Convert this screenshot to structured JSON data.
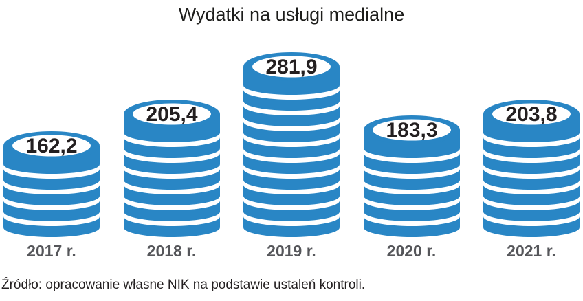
{
  "title": "Wydatki na usługi medialne",
  "source_note": "Źródło: opracowanie własne NIK na podstawie ustaleń kontroli.",
  "chart_data": {
    "type": "bar",
    "variant": "coin-stack-pictogram",
    "title": "Wydatki na usługi medialne",
    "categories": [
      "2017 r.",
      "2018 r.",
      "2019 r.",
      "2020 r.",
      "2021 r."
    ],
    "values": [
      162.2,
      205.4,
      281.9,
      183.3,
      203.8
    ],
    "value_labels": [
      "162,2",
      "205,4",
      "281,9",
      "183,3",
      "203,8"
    ],
    "coins_below_cap": [
      4,
      6,
      9,
      5,
      6
    ],
    "legend": "none",
    "axes": "none",
    "colors": {
      "coin_blue": "#2986c5",
      "gap_white": "#ffffff",
      "value_text": "#231f20",
      "year_text": "#55565a",
      "title_text": "#1d1d1b"
    }
  }
}
